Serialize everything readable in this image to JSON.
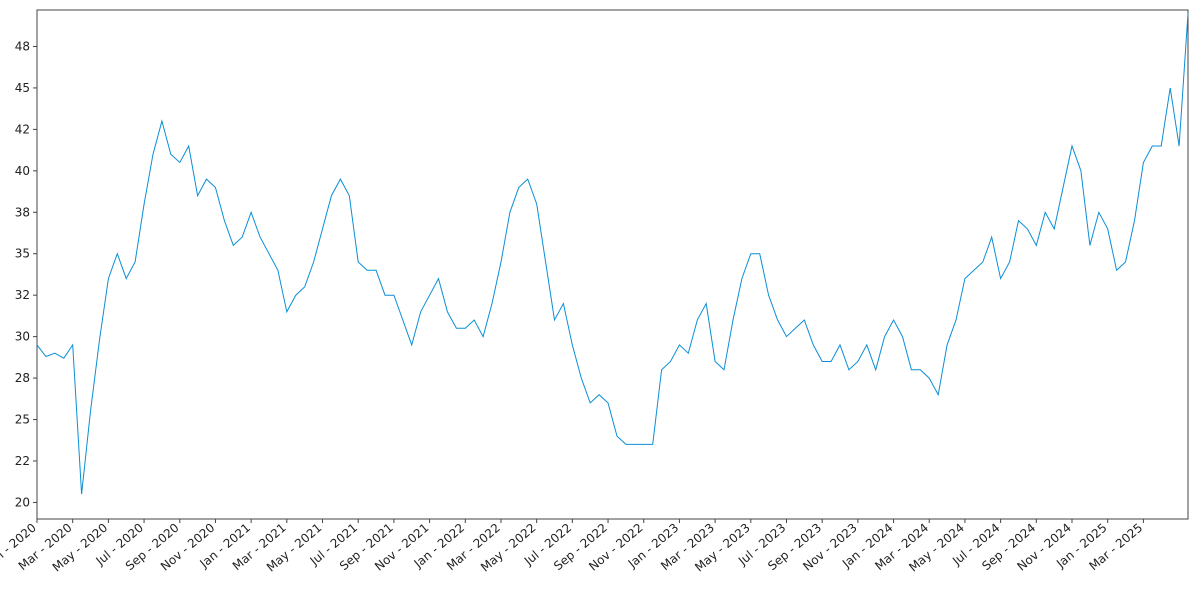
{
  "chart_data": {
    "type": "line",
    "categories": [
      "Jan - 2020",
      null,
      null,
      null,
      "Mar - 2020",
      null,
      null,
      null,
      "May - 2020",
      null,
      null,
      null,
      "Jul - 2020",
      null,
      null,
      null,
      "Sep - 2020",
      null,
      null,
      null,
      "Nov - 2020",
      null,
      null,
      null,
      "Jan - 2021",
      null,
      null,
      null,
      "Mar - 2021",
      null,
      null,
      null,
      "May - 2021",
      null,
      null,
      null,
      "Jul - 2021",
      null,
      null,
      null,
      "Sep - 2021",
      null,
      null,
      null,
      "Nov - 2021",
      null,
      null,
      null,
      "Jan - 2022",
      null,
      null,
      null,
      "Mar - 2022",
      null,
      null,
      null,
      "May - 2022",
      null,
      null,
      null,
      "Jul - 2022",
      null,
      null,
      null,
      "Sep - 2022",
      null,
      null,
      null,
      "Nov - 2022",
      null,
      null,
      null,
      "Jan - 2023",
      null,
      null,
      null,
      "Mar - 2023",
      null,
      null,
      null,
      "May - 2023",
      null,
      null,
      null,
      "Jul - 2023",
      null,
      null,
      null,
      "Sep - 2023",
      null,
      null,
      null,
      "Nov - 2023",
      null,
      null,
      null,
      "Jan - 2024",
      null,
      null,
      null,
      "Mar - 2024",
      null,
      null,
      null,
      "May - 2024",
      null,
      null,
      null,
      "Jul - 2024",
      null,
      null,
      null,
      "Sep - 2024",
      null,
      null,
      null,
      "Nov - 2024",
      null,
      null,
      null,
      "Jan - 2025",
      null,
      null,
      null,
      "Mar - 2025",
      null,
      null,
      null,
      null,
      null
    ],
    "series": [
      {
        "color": "#0a8fd6",
        "values": [
          29.5,
          28.8,
          29.0,
          28.7,
          29.5,
          20.5,
          25.5,
          29.8,
          33.5,
          35,
          33.5,
          34.5,
          38,
          41,
          43,
          41,
          40.5,
          41.5,
          38.5,
          39.5,
          39,
          37,
          35.5,
          36,
          37.5,
          36,
          35,
          34,
          31.5,
          32.5,
          33,
          34.5,
          36.5,
          38.5,
          39.5,
          38.5,
          34.5,
          34,
          34,
          32.5,
          32.5,
          31,
          29.5,
          31.5,
          32.5,
          33.5,
          31.5,
          30.5,
          30.5,
          31,
          30,
          32,
          34.5,
          37.5,
          39,
          39.5,
          38,
          34.5,
          31,
          32,
          29.5,
          27.5,
          26,
          26.5,
          26,
          24,
          23.5,
          23.5,
          23.5,
          23.5,
          28,
          28.5,
          29.5,
          29,
          31,
          32,
          28.5,
          28,
          31,
          33.5,
          35,
          35,
          32.5,
          31,
          30,
          30.5,
          31,
          29.5,
          28.5,
          28.5,
          29.5,
          28,
          28.5,
          29.5,
          28,
          30,
          31,
          30,
          28,
          28,
          27.5,
          26.5,
          29.5,
          31,
          33.5,
          34,
          34.5,
          36,
          33.5,
          34.5,
          37,
          36.5,
          35.5,
          37.5,
          36.5,
          39,
          41.5,
          40,
          35.5,
          37.5,
          36.5,
          34,
          34.5,
          37,
          40.5,
          41.5,
          41.5,
          45,
          41.5,
          49.5
        ]
      }
    ],
    "ylim": [
      19.0,
      49.7
    ],
    "yticks": [
      20,
      {
        "value": 22.5,
        "label": "22"
      },
      25,
      {
        "value": 27.5,
        "label": "28"
      },
      30,
      {
        "value": 32.5,
        "label": "32"
      },
      35,
      {
        "value": 37.5,
        "label": "38"
      },
      40,
      {
        "value": 42.5,
        "label": "42"
      },
      45,
      {
        "value": 47.5,
        "label": "48"
      }
    ]
  }
}
